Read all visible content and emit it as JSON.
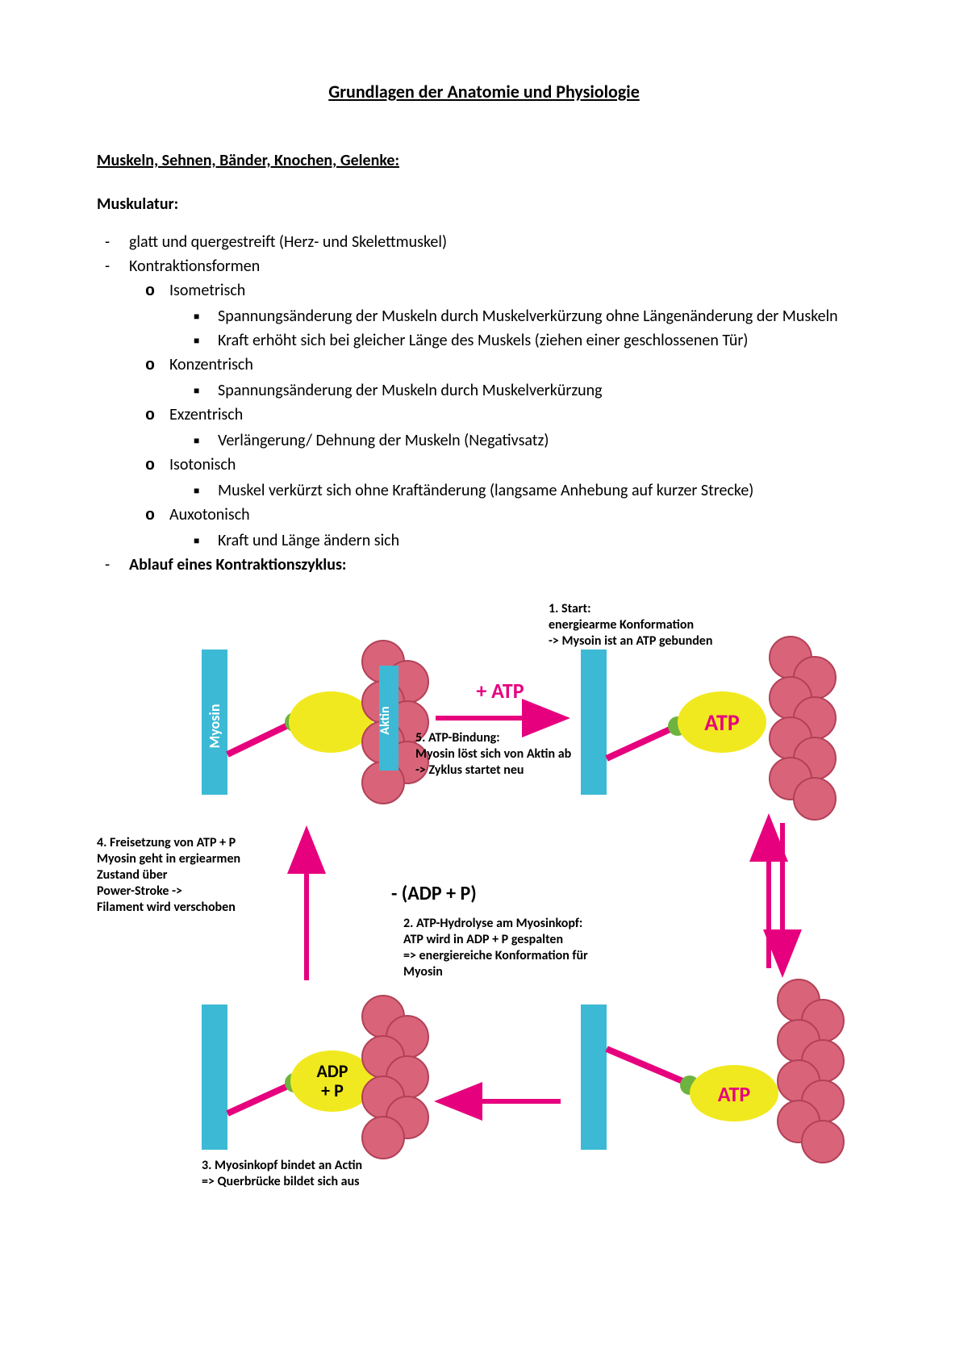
{
  "title": "Grundlagen der Anatomie und Physiologie",
  "section1": "Muskeln, Sehnen, Bänder, Knochen, Gelenke:",
  "sub1": "Muskulatur:",
  "bullets": {
    "b1": "glatt und quergestreift (Herz- und Skelettmuskel)",
    "b2": "Kontraktionsformen",
    "c1": "Isometrisch",
    "c1a": "Spannungsänderung der Muskeln durch Muskelverkürzung ohne Längenänderung der Muskeln",
    "c1b": "Kraft erhöht sich bei gleicher Länge des Muskels (ziehen einer geschlossenen Tür)",
    "c2": "Konzentrisch",
    "c2a": "Spannungsänderung der Muskeln durch Muskelverkürzung",
    "c3": "Exzentrisch",
    "c3a": "Verlängerung/ Dehnung der Muskeln (Negativsatz)",
    "c4": "Isotonisch",
    "c4a": "Muskel verkürzt sich ohne Kraftänderung (langsame Anhebung auf kurzer Strecke)",
    "c5": "Auxotonisch",
    "c5a": "Kraft und Länge ändern sich",
    "b3": "Ablauf eines Kontraktionszyklus:"
  },
  "diagram": {
    "colors": {
      "myosin_bar": "#3cb9d4",
      "myosin_head": "#f1e91f",
      "myosin_stem": "#e6007e",
      "actin_ball": "#d96479",
      "actin_stroke": "#b24158",
      "arrow": "#e6007e",
      "atp_text": "#e6007e",
      "green_dot": "#6db33f",
      "atp_plus": "#e6007e",
      "text": "#000000"
    },
    "labels": {
      "myosin": "Myosin",
      "aktin": "Aktin",
      "atp": "ATP",
      "adp_p": "ADP",
      "adp_p2": "+ P",
      "plus_atp": "+ ATP",
      "minus_adp": "- (ADP + P)"
    },
    "captions": {
      "c1": "1. Start:\nenergiearme Konformation\n-> Mysoin ist an ATP gebunden",
      "c2": "2. ATP-Hydrolyse am Myosinkopf:\nATP wird in ADP + P gespalten\n=> energiereiche Konformation für\nMyosin",
      "c3": "3. Myosinkopf bindet an Actin\n=> Querbrücke bildet sich aus",
      "c4": "4. Freisetzung von ATP + P\nMyosin geht in ergiearmen\nZustand über\nPower-Stroke ->\nFilament wird verschoben",
      "c5": "5. ATP-Bindung:\nMyosin löst sich von Aktin ab\n-> Zyklus startet neu"
    }
  }
}
